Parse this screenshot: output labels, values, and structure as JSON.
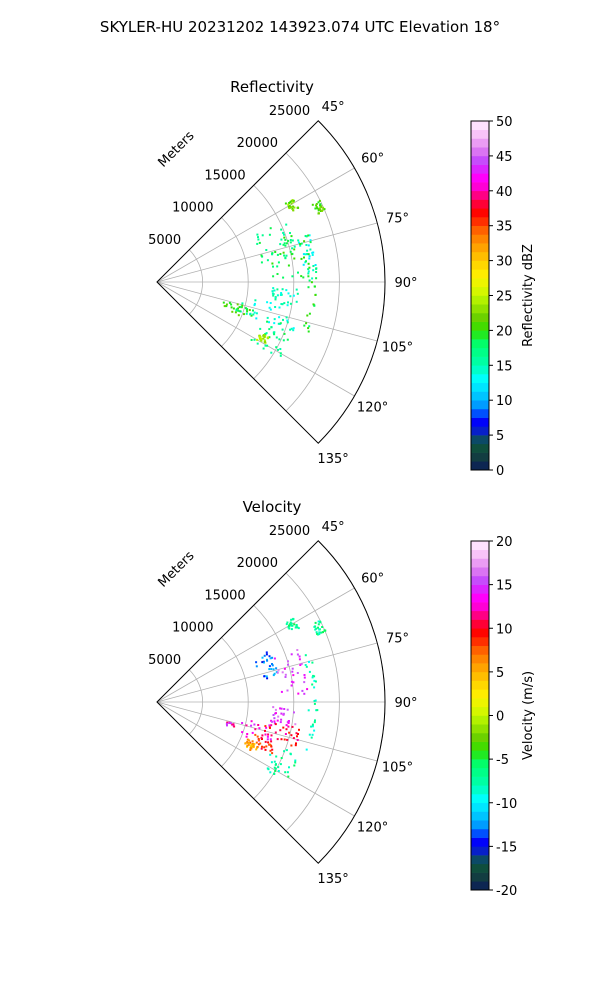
{
  "figure_title": "SKYLER-HU  20231202  143923.074 UTC Elevation 18°",
  "chart_data": [
    {
      "type": "polar-sector",
      "title": "Reflectivity",
      "radial_label": "Meters",
      "radial_ticks": [
        5000,
        10000,
        15000,
        20000,
        25000
      ],
      "angle_ticks": [
        "45°",
        "60°",
        "75°",
        "90°",
        "105°",
        "120°",
        "135°"
      ],
      "angle_tick_values": [
        45,
        60,
        75,
        90,
        105,
        120,
        135
      ],
      "angle_range_deg": [
        45,
        135
      ],
      "range_max_m": 25000,
      "grid": true,
      "colorbar": {
        "label": "Reflectivity dBZ",
        "min": 0,
        "max": 50,
        "ticks": [
          0,
          5,
          10,
          15,
          20,
          25,
          30,
          35,
          40,
          45,
          50
        ]
      },
      "echoes": [
        {
          "az_range": [
            58,
            62
          ],
          "range_m": [
            16500,
            17500
          ],
          "value": 22
        },
        {
          "az_range": [
            63,
            67
          ],
          "range_m": [
            19000,
            20000
          ],
          "value": 21
        },
        {
          "az_range": [
            64,
            80
          ],
          "range_m": [
            11500,
            16000
          ],
          "value": 17
        },
        {
          "az_range": [
            72,
            89
          ],
          "range_m": [
            16000,
            17500
          ],
          "value": 14
        },
        {
          "az_range": [
            70,
            88
          ],
          "range_m": [
            12500,
            16500
          ],
          "value": 19
        },
        {
          "az_range": [
            92,
            100
          ],
          "range_m": [
            12500,
            15500
          ],
          "value": 15
        },
        {
          "az_range": [
            99,
            110
          ],
          "range_m": [
            9000,
            16000
          ],
          "value": 14
        },
        {
          "az_range": [
            105,
            112
          ],
          "range_m": [
            7500,
            11000
          ],
          "value": 20
        },
        {
          "az_range": [
            72,
            110
          ],
          "range_m": [
            16500,
            17500
          ],
          "value": 19
        },
        {
          "az_range": [
            108,
            122
          ],
          "range_m": [
            12000,
            16500
          ],
          "value": 17
        },
        {
          "az_range": [
            116,
            120
          ],
          "range_m": [
            12500,
            13500
          ],
          "value": 24
        }
      ]
    },
    {
      "type": "polar-sector",
      "title": "Velocity",
      "radial_label": "Meters",
      "radial_ticks": [
        5000,
        10000,
        15000,
        20000,
        25000
      ],
      "angle_ticks": [
        "45°",
        "60°",
        "75°",
        "90°",
        "105°",
        "120°",
        "135°"
      ],
      "angle_tick_values": [
        45,
        60,
        75,
        90,
        105,
        120,
        135
      ],
      "angle_range_deg": [
        45,
        135
      ],
      "range_max_m": 25000,
      "grid": true,
      "colorbar": {
        "label": "Velocity (m/s)",
        "min": -20,
        "max": 20,
        "ticks": [
          -20,
          -15,
          -10,
          -5,
          0,
          5,
          10,
          15,
          20
        ]
      },
      "echoes": [
        {
          "az_range": [
            58,
            62
          ],
          "range_m": [
            16500,
            17500
          ],
          "value": -7
        },
        {
          "az_range": [
            63,
            67
          ],
          "range_m": [
            19000,
            20000
          ],
          "value": -7
        },
        {
          "az_range": [
            64,
            78
          ],
          "range_m": [
            11500,
            13500
          ],
          "value": -13
        },
        {
          "az_range": [
            68,
            88
          ],
          "range_m": [
            13500,
            16500
          ],
          "value": 15
        },
        {
          "az_range": [
            92,
            100
          ],
          "range_m": [
            12500,
            15500
          ],
          "value": 15
        },
        {
          "az_range": [
            100,
            108
          ],
          "range_m": [
            12000,
            16000
          ],
          "value": 10
        },
        {
          "az_range": [
            101,
            111
          ],
          "range_m": [
            7500,
            13000
          ],
          "value": 13
        },
        {
          "az_range": [
            108,
            114
          ],
          "range_m": [
            11000,
            14000
          ],
          "value": 9
        },
        {
          "az_range": [
            112,
            117
          ],
          "range_m": [
            10500,
            12000
          ],
          "value": 5
        },
        {
          "az_range": [
            72,
            110
          ],
          "range_m": [
            16500,
            17500
          ],
          "value": -8
        },
        {
          "az_range": [
            110,
            122
          ],
          "range_m": [
            13500,
            16500
          ],
          "value": -7
        }
      ]
    }
  ]
}
